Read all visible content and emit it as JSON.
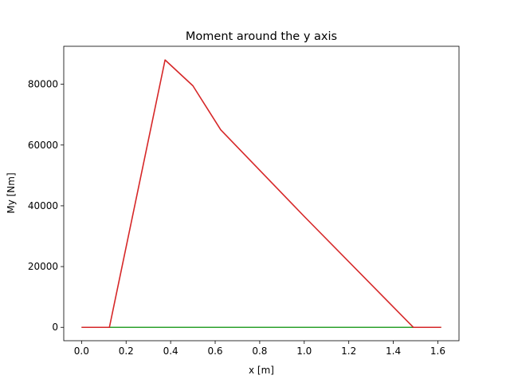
{
  "chart_data": {
    "type": "line",
    "title": "Moment around the y axis",
    "xlabel": "x [m]",
    "ylabel": "My [Nm]",
    "xlim": [
      -0.08,
      1.695
    ],
    "ylim": [
      -4400,
      92500
    ],
    "xticks": [
      0.0,
      0.2,
      0.4,
      0.6,
      0.8,
      1.0,
      1.2,
      1.4,
      1.6
    ],
    "xtick_labels": [
      "0.0",
      "0.2",
      "0.4",
      "0.6",
      "0.8",
      "1.0",
      "1.2",
      "1.4",
      "1.6"
    ],
    "yticks": [
      0,
      20000,
      40000,
      60000,
      80000
    ],
    "ytick_labels": [
      "0",
      "20000",
      "40000",
      "60000",
      "80000"
    ],
    "grid": false,
    "series": [
      {
        "color": "#2ca02c",
        "x": [
          0.0,
          0.125,
          0.375,
          0.5,
          0.625,
          1.0,
          1.49,
          1.615
        ],
        "y": [
          0,
          0,
          0,
          0,
          0,
          0,
          0,
          0
        ]
      },
      {
        "color": "#d62728",
        "x": [
          0.0,
          0.125,
          0.375,
          0.5,
          0.625,
          1.0,
          1.49,
          1.615
        ],
        "y": [
          0,
          0,
          88000,
          79500,
          65000,
          36500,
          0,
          0
        ]
      }
    ]
  }
}
